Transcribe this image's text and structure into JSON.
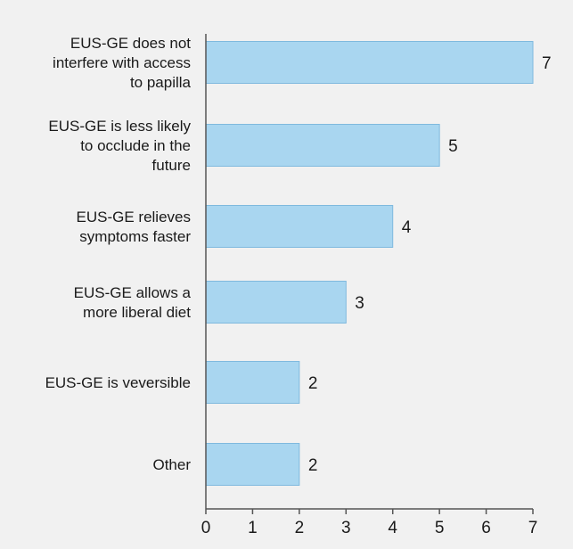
{
  "chart_data": {
    "type": "bar",
    "orientation": "horizontal",
    "categories": [
      [
        "EUS-GE does not",
        "interfere with access",
        "to papilla"
      ],
      [
        "EUS-GE is less likely",
        "to occlude in the",
        "future"
      ],
      [
        "EUS-GE relieves",
        "symptoms faster"
      ],
      [
        "EUS-GE allows a",
        "more liberal diet"
      ],
      [
        "EUS-GE is veversible"
      ],
      [
        "Other"
      ]
    ],
    "values": [
      7,
      5,
      4,
      3,
      2,
      2
    ],
    "xlim": [
      0,
      7
    ],
    "xticks": [
      "0",
      "1",
      "2",
      "3",
      "4",
      "5",
      "6",
      "7"
    ],
    "data_labels": [
      "7",
      "5",
      "4",
      "3",
      "2",
      "2"
    ],
    "bar_color": "#a9d6f0",
    "bar_edge_color": "#7fb9de",
    "axis_color": "#555555",
    "background_color": "#f1f1f1",
    "grid": false
  }
}
